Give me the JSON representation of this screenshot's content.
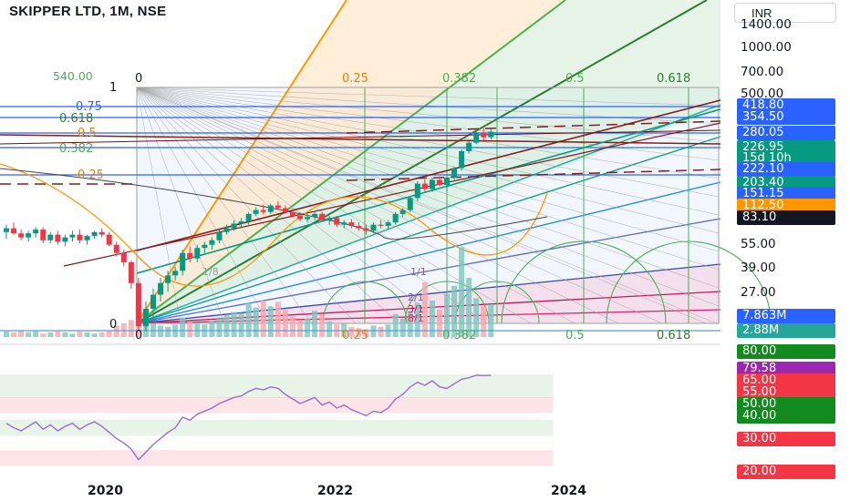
{
  "header": {
    "symbol": "SKIPPER LTD, 1M, NSE",
    "currency": "INR"
  },
  "colors": {
    "up": "#089981",
    "down": "#f23645",
    "gann_green": "#4caf50",
    "gann_orange": "#ff9800",
    "fib_blue": "#2962ff",
    "rsi_line": "#9c6bd6"
  },
  "fib_labels": {
    "top_value": "540.00",
    "left": [
      "1",
      "0.75",
      "0.618",
      "0.5",
      "0.382",
      "0.25",
      "0"
    ],
    "top": [
      "0",
      "0.25",
      "0.382",
      "0.5",
      "0.618"
    ],
    "bottom": [
      "0",
      "0.25",
      "0.382",
      "0.5",
      "0.618"
    ],
    "gann_fan": [
      "1/8",
      "1/1",
      "2/1",
      "3/1",
      "8/1"
    ]
  },
  "price_axis": {
    "ticks": [
      "1400.00",
      "1000.00",
      "700.00",
      "500.00",
      "55.00",
      "39.00",
      "27.00"
    ],
    "tags": [
      {
        "text": "418.80",
        "color": "#2962ff"
      },
      {
        "text": "354.50",
        "color": "#2962ff"
      },
      {
        "text": "280.05",
        "color": "#2962ff"
      },
      {
        "text": "226.95",
        "color": "#089981"
      },
      {
        "text": "15d 10h",
        "color": "#089981"
      },
      {
        "text": "222.10",
        "color": "#2962ff"
      },
      {
        "text": "203.40",
        "color": "#089981"
      },
      {
        "text": "151.15",
        "color": "#2962ff"
      },
      {
        "text": "112.50",
        "color": "#ff9800"
      },
      {
        "text": "83.10",
        "color": "#131722"
      },
      {
        "text": "7.863M",
        "color": "#2962ff"
      },
      {
        "text": "2.88M",
        "color": "#26a69a"
      }
    ]
  },
  "rsi_axis": {
    "tags": [
      {
        "text": "80.00",
        "color": "#138a1e"
      },
      {
        "text": "79.58",
        "color": "#9c27b0"
      },
      {
        "text": "65.00",
        "color": "#f23645"
      },
      {
        "text": "55.00",
        "color": "#f23645"
      },
      {
        "text": "50.00",
        "color": "#138a1e"
      },
      {
        "text": "40.00",
        "color": "#138a1e"
      },
      {
        "text": "30.00",
        "color": "#f23645"
      },
      {
        "text": "20.00",
        "color": "#f23645"
      }
    ]
  },
  "time_axis": [
    "2020",
    "2022",
    "2024"
  ],
  "chart_data": [
    {
      "type": "candlestick",
      "title": "SKIPPER LTD, 1M, NSE",
      "scale": "log",
      "ylim": [
        12,
        1500
      ],
      "y_ticks": [
        27,
        39,
        55,
        500,
        700,
        1000,
        1400
      ],
      "x_ticks": [
        "2020",
        "2022",
        "2024"
      ],
      "ohlc": [
        [
          54,
          60,
          49,
          57
        ],
        [
          57,
          62,
          52,
          53
        ],
        [
          53,
          56,
          48,
          50
        ],
        [
          50,
          55,
          47,
          53
        ],
        [
          53,
          58,
          50,
          56
        ],
        [
          56,
          58,
          46,
          48
        ],
        [
          48,
          54,
          46,
          52
        ],
        [
          52,
          55,
          45,
          47
        ],
        [
          47,
          52,
          44,
          50
        ],
        [
          50,
          55,
          47,
          52
        ],
        [
          52,
          56,
          46,
          48
        ],
        [
          48,
          52,
          45,
          51
        ],
        [
          51,
          55,
          49,
          54
        ],
        [
          54,
          57,
          50,
          52
        ],
        [
          52,
          54,
          44,
          45
        ],
        [
          45,
          47,
          38,
          40
        ],
        [
          40,
          42,
          33,
          35
        ],
        [
          35,
          36,
          24,
          26
        ],
        [
          26,
          28,
          13,
          14
        ],
        [
          14,
          20,
          13,
          18
        ],
        [
          18,
          24,
          16,
          22
        ],
        [
          22,
          28,
          20,
          26
        ],
        [
          26,
          31,
          23,
          29
        ],
        [
          29,
          33,
          27,
          31
        ],
        [
          31,
          42,
          29,
          40
        ],
        [
          40,
          44,
          35,
          37
        ],
        [
          37,
          45,
          35,
          43
        ],
        [
          43,
          47,
          40,
          45
        ],
        [
          45,
          50,
          42,
          48
        ],
        [
          48,
          56,
          46,
          54
        ],
        [
          54,
          60,
          52,
          57
        ],
        [
          57,
          64,
          55,
          61
        ],
        [
          61,
          66,
          58,
          63
        ],
        [
          63,
          72,
          60,
          70
        ],
        [
          70,
          77,
          68,
          74
        ],
        [
          74,
          80,
          70,
          72
        ],
        [
          72,
          81,
          70,
          79
        ],
        [
          79,
          84,
          74,
          76
        ],
        [
          76,
          79,
          70,
          72
        ],
        [
          72,
          76,
          66,
          68
        ],
        [
          68,
          72,
          63,
          65
        ],
        [
          65,
          70,
          62,
          67
        ],
        [
          67,
          72,
          64,
          70
        ],
        [
          70,
          72,
          63,
          64
        ],
        [
          64,
          68,
          60,
          66
        ],
        [
          66,
          68,
          58,
          60
        ],
        [
          60,
          64,
          57,
          62
        ],
        [
          62,
          65,
          57,
          59
        ],
        [
          59,
          62,
          55,
          57
        ],
        [
          57,
          60,
          52,
          55
        ],
        [
          55,
          62,
          53,
          60
        ],
        [
          60,
          64,
          57,
          59
        ],
        [
          59,
          64,
          56,
          62
        ],
        [
          62,
          72,
          60,
          70
        ],
        [
          70,
          76,
          67,
          74
        ],
        [
          74,
          90,
          72,
          88
        ],
        [
          88,
          112,
          84,
          108
        ],
        [
          108,
          115,
          95,
          100
        ],
        [
          100,
          118,
          96,
          114
        ],
        [
          114,
          120,
          104,
          106
        ],
        [
          106,
          120,
          98,
          118
        ],
        [
          118,
          138,
          114,
          135
        ],
        [
          135,
          176,
          130,
          172
        ],
        [
          172,
          200,
          166,
          194
        ],
        [
          194,
          232,
          190,
          222
        ],
        [
          222,
          240,
          200,
          210
        ],
        [
          210,
          236,
          204,
          227
        ]
      ],
      "volume_range": [
        0,
        8000000
      ],
      "volume_millions": [
        0.5,
        0.4,
        0.6,
        0.4,
        0.5,
        0.3,
        0.4,
        0.5,
        0.4,
        0.3,
        0.5,
        0.4,
        0.3,
        0.4,
        0.6,
        1.0,
        1.2,
        1.5,
        2.8,
        1.8,
        1.2,
        1.0,
        0.9,
        1.1,
        1.7,
        1.4,
        1.2,
        1.1,
        1.4,
        1.6,
        1.9,
        2.2,
        2.1,
        3.0,
        2.6,
        3.2,
        2.7,
        3.1,
        2.4,
        1.8,
        1.5,
        1.6,
        2.3,
        2.0,
        1.4,
        1.1,
        1.2,
        0.9,
        0.8,
        0.7,
        1.0,
        0.9,
        1.1,
        2.0,
        1.6,
        2.2,
        3.0,
        4.8,
        3.2,
        2.4,
        3.8,
        4.5,
        7.9,
        5.2,
        3.4,
        2.7,
        2.88
      ],
      "rsi_range": [
        10,
        100
      ],
      "rsi": [
        48,
        45,
        43,
        46,
        49,
        44,
        47,
        43,
        46,
        48,
        44,
        47,
        49,
        46,
        42,
        38,
        35,
        31,
        24,
        29,
        34,
        38,
        42,
        45,
        52,
        50,
        54,
        56,
        58,
        61,
        63,
        65,
        66,
        69,
        71,
        70,
        72,
        71,
        67,
        64,
        61,
        63,
        65,
        60,
        62,
        58,
        60,
        57,
        55,
        53,
        56,
        55,
        58,
        64,
        67,
        72,
        75,
        73,
        76,
        72,
        71,
        74,
        77,
        78,
        79.6,
        79.4,
        79.58
      ],
      "rsi_bands": [
        {
          "from": 65,
          "to": 80,
          "color": "green"
        },
        {
          "from": 55,
          "to": 65,
          "color": "red"
        },
        {
          "from": 40,
          "to": 50,
          "color": "green"
        },
        {
          "from": 20,
          "to": 30,
          "color": "red"
        }
      ]
    }
  ]
}
